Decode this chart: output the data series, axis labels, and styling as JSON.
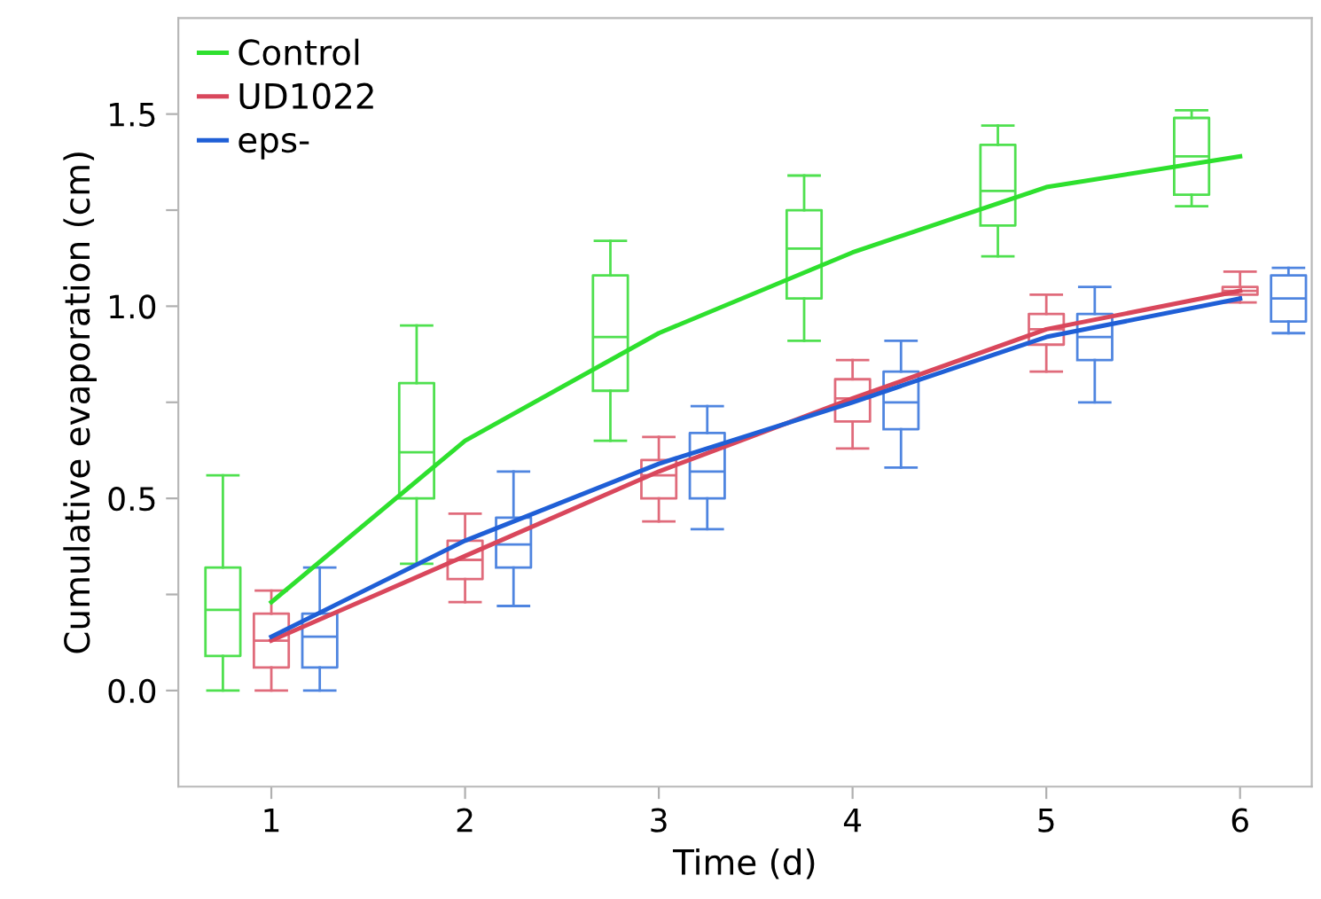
{
  "chart_data": {
    "type": "box",
    "xlabel": "Time (d)",
    "ylabel": "Cumulative evaporation (cm)",
    "categories": [
      "1",
      "2",
      "3",
      "4",
      "5",
      "6"
    ],
    "ylim": [
      -0.25,
      1.75
    ],
    "yticks": [
      {
        "value": 0.0,
        "label": "0.0"
      },
      {
        "value": 0.25,
        "label": null
      },
      {
        "value": 0.5,
        "label": "0.5"
      },
      {
        "value": 0.75,
        "label": null
      },
      {
        "value": 1.0,
        "label": "1.0"
      },
      {
        "value": 1.25,
        "label": null
      },
      {
        "value": 1.5,
        "label": "1.5"
      }
    ],
    "grid": false,
    "legend": "top left",
    "marker": "none",
    "line_style": "solid",
    "series": [
      {
        "color": "#4fe04f",
        "boxes": [
          {
            "low": 0.0,
            "q1": 0.09,
            "median": 0.21,
            "q3": 0.32,
            "high": 0.56
          },
          {
            "low": 0.33,
            "q1": 0.5,
            "median": 0.62,
            "q3": 0.8,
            "high": 0.95
          },
          {
            "low": 0.65,
            "q1": 0.78,
            "median": 0.92,
            "q3": 1.08,
            "high": 1.17
          },
          {
            "low": 0.91,
            "q1": 1.02,
            "median": 1.15,
            "q3": 1.25,
            "high": 1.34
          },
          {
            "low": 1.13,
            "q1": 1.21,
            "median": 1.3,
            "q3": 1.42,
            "high": 1.47
          },
          {
            "low": 1.26,
            "q1": 1.29,
            "median": 1.39,
            "q3": 1.49,
            "high": 1.51
          }
        ]
      },
      {
        "color": "#e06b7b",
        "boxes": [
          {
            "low": 0.0,
            "q1": 0.06,
            "median": 0.13,
            "q3": 0.2,
            "high": 0.26
          },
          {
            "low": 0.23,
            "q1": 0.29,
            "median": 0.34,
            "q3": 0.39,
            "high": 0.46
          },
          {
            "low": 0.44,
            "q1": 0.5,
            "median": 0.56,
            "q3": 0.6,
            "high": 0.66
          },
          {
            "low": 0.63,
            "q1": 0.7,
            "median": 0.76,
            "q3": 0.81,
            "high": 0.86
          },
          {
            "low": 0.83,
            "q1": 0.9,
            "median": 0.94,
            "q3": 0.98,
            "high": 1.03
          },
          {
            "low": 1.01,
            "q1": 1.03,
            "median": 1.04,
            "q3": 1.05,
            "high": 1.09
          }
        ]
      },
      {
        "color": "#4f85e0",
        "boxes": [
          {
            "low": 0.0,
            "q1": 0.06,
            "median": 0.14,
            "q3": 0.2,
            "high": 0.32
          },
          {
            "low": 0.22,
            "q1": 0.32,
            "median": 0.38,
            "q3": 0.45,
            "high": 0.57
          },
          {
            "low": 0.42,
            "q1": 0.5,
            "median": 0.57,
            "q3": 0.67,
            "high": 0.74
          },
          {
            "low": 0.58,
            "q1": 0.68,
            "median": 0.75,
            "q3": 0.83,
            "high": 0.91
          },
          {
            "low": 0.75,
            "q1": 0.86,
            "median": 0.92,
            "q3": 0.98,
            "high": 1.05
          },
          {
            "low": 0.93,
            "q1": 0.96,
            "median": 1.02,
            "q3": 1.08,
            "high": 1.1
          }
        ]
      },
      {
        "type": "line",
        "name": "Control",
        "color": "#2ee02e",
        "values": [
          0.23,
          0.65,
          0.93,
          1.14,
          1.31,
          1.39
        ]
      },
      {
        "type": "line",
        "name": "UD1022",
        "color": "#d9475c",
        "values": [
          0.13,
          0.35,
          0.57,
          0.76,
          0.94,
          1.04
        ]
      },
      {
        "type": "line",
        "name": "eps-",
        "color": "#1f5fd6",
        "values": [
          0.14,
          0.39,
          0.59,
          0.75,
          0.92,
          1.02
        ]
      }
    ]
  }
}
